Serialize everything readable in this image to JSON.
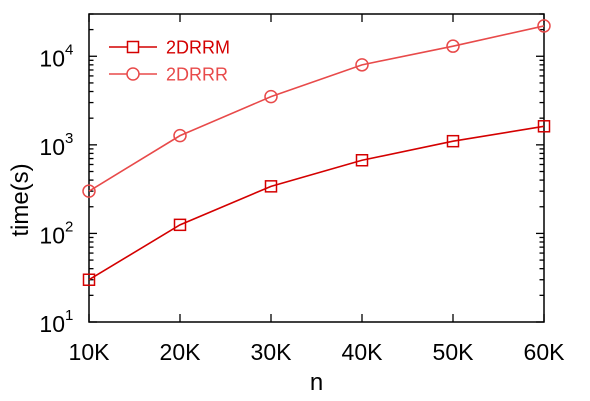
{
  "chart_data": {
    "type": "line",
    "title": "",
    "xlabel": "n",
    "ylabel": "time(s)",
    "yscale": "log",
    "categories": [
      "10K",
      "20K",
      "30K",
      "40K",
      "50K",
      "60K"
    ],
    "x": [
      10000,
      20000,
      30000,
      40000,
      50000,
      60000
    ],
    "xlim": [
      10000,
      60000
    ],
    "ylim": [
      10,
      30000
    ],
    "ytick_values": [
      10,
      100,
      1000,
      10000
    ],
    "yticks": [
      {
        "base": "10",
        "exp": "1"
      },
      {
        "base": "10",
        "exp": "2"
      },
      {
        "base": "10",
        "exp": "3"
      },
      {
        "base": "10",
        "exp": "4"
      }
    ],
    "grid": false,
    "legend": "top-left",
    "series": [
      {
        "name": "2DRRM",
        "marker": "square",
        "color": "#d40000",
        "values": [
          30,
          125,
          340,
          670,
          1100,
          1620
        ]
      },
      {
        "name": "2DRRR",
        "marker": "circle",
        "color": "#e84a4a",
        "values": [
          300,
          1270,
          3500,
          8000,
          13000,
          22000
        ]
      }
    ]
  }
}
